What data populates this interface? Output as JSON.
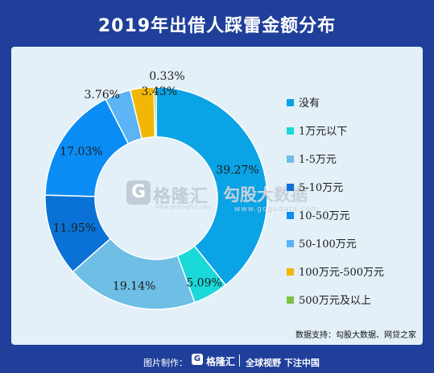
{
  "title": "2019年出借人踩雷金额分布",
  "watermark": {
    "brand": "格隆汇",
    "brand_site": "www.gelonghui.com",
    "brand2": "勾股大数据",
    "brand2_site": "www.gogudata.com"
  },
  "source": "数据支持：勾股大数据、网贷之家",
  "footer": {
    "label": "图片制作：",
    "brand": "格隆汇",
    "slogan": "全球视野 下注中国"
  },
  "chart_data": {
    "type": "pie",
    "title": "2019年出借人踩雷金额分布",
    "donut": true,
    "legend_position": "right",
    "categories": [
      "没有",
      "1万元以下",
      "1-5万元",
      "5-10万元",
      "10-50万元",
      "50-100万元",
      "100万元-500万元",
      "500万元及以上"
    ],
    "values": [
      39.27,
      5.09,
      19.14,
      11.95,
      17.03,
      3.76,
      3.43,
      0.33
    ],
    "labels": [
      "39.27%",
      "5.09%",
      "19.14%",
      "11.95%",
      "17.03%",
      "3.76%",
      "3.43%",
      "0.33%"
    ],
    "colors": [
      "#0aa3e6",
      "#1ad9d9",
      "#6ebee6",
      "#0a72d6",
      "#0a8cf5",
      "#5ab4f5",
      "#f2b705",
      "#7dc241"
    ]
  }
}
